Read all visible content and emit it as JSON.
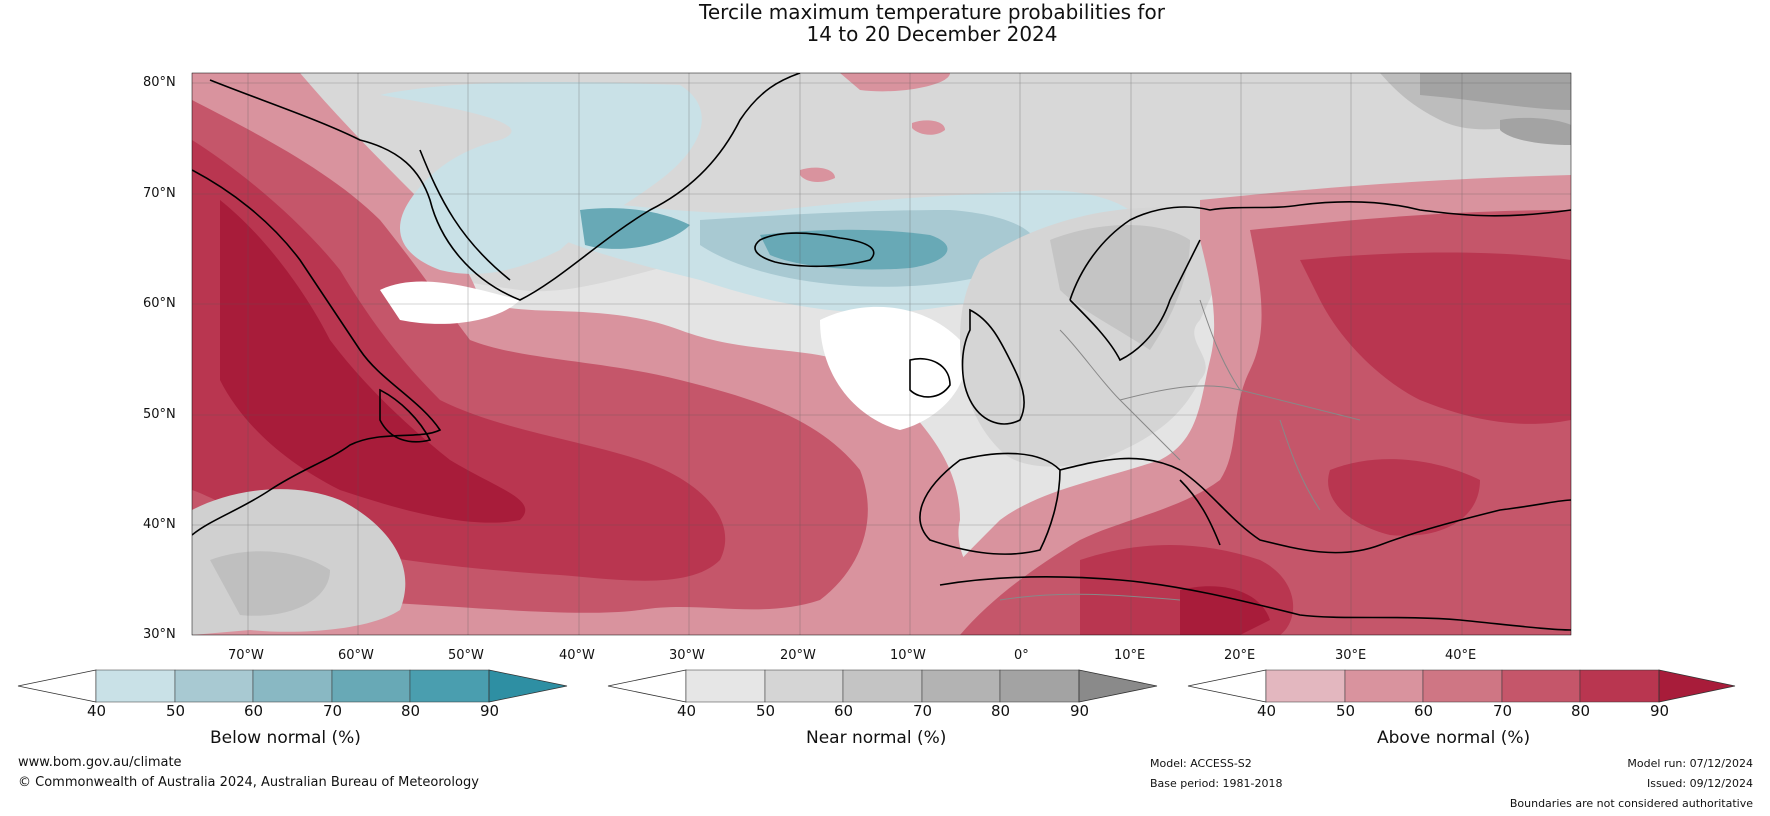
{
  "title": {
    "line1": "Tercile maximum temperature probabilities for",
    "line2": "14 to 20 December 2024"
  },
  "lat_labels": [
    "80°N",
    "70°N",
    "60°N",
    "50°N",
    "40°N",
    "30°N"
  ],
  "lon_labels": [
    "70°W",
    "60°W",
    "50°W",
    "40°W",
    "30°W",
    "20°W",
    "10°W",
    "0°",
    "10°E",
    "20°E",
    "30°E",
    "40°E"
  ],
  "colorbars": {
    "below": {
      "label": "Below normal (%)",
      "ticks": [
        "40",
        "50",
        "60",
        "70",
        "80",
        "90"
      ],
      "colors": [
        "#c9e1e7",
        "#a8c9d2",
        "#89b8c3",
        "#68a9b6",
        "#4a9eaf",
        "#2e8fa3"
      ]
    },
    "near": {
      "label": "Near normal (%)",
      "ticks": [
        "40",
        "50",
        "60",
        "70",
        "80",
        "90"
      ],
      "colors": [
        "#e6e6e6",
        "#d5d5d5",
        "#c4c4c4",
        "#b3b3b3",
        "#a3a3a3",
        "#8a8a8a"
      ]
    },
    "above": {
      "label": "Above normal (%)",
      "ticks": [
        "40",
        "50",
        "60",
        "70",
        "80",
        "90"
      ],
      "colors": [
        "#e3b7bf",
        "#d9939e",
        "#cf7684",
        "#c5566a",
        "#b93650",
        "#a81c3a"
      ]
    }
  },
  "footer": {
    "website": "www.bom.gov.au/climate",
    "copyright": "© Commonwealth of Australia 2024, Australian Bureau of Meteorology",
    "model": "Model: ACCESS-S2",
    "base_period": "Base period: 1981-2018",
    "model_run": "Model run: 07/12/2024",
    "issued": "Issued: 09/12/2024",
    "disclaimer": "Boundaries are not considered authoritative"
  }
}
